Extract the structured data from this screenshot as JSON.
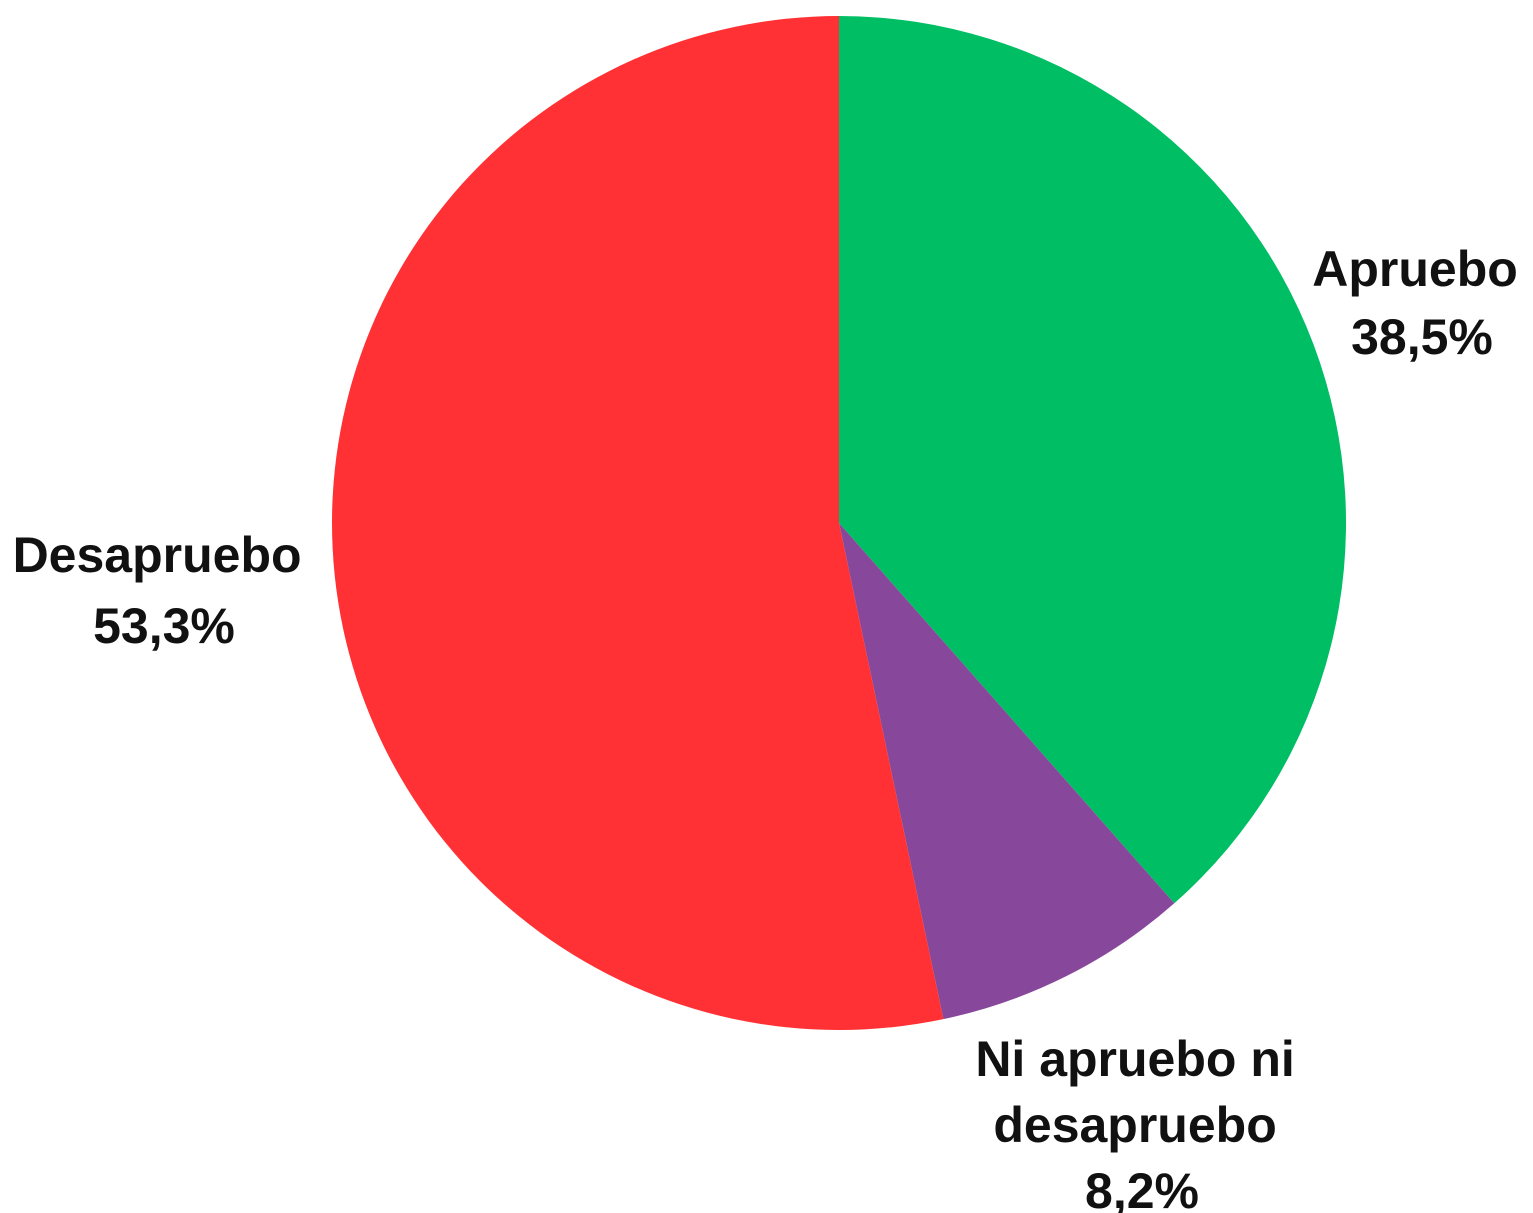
{
  "chart_data": {
    "type": "pie",
    "start_angle_deg": 0,
    "direction": "clockwise",
    "slices": [
      {
        "label": "Apruebo",
        "value": 38.5,
        "value_text": "38,5%",
        "color": "#00be64"
      },
      {
        "label": "Ni apruebo ni desapruebo",
        "label_lines": [
          "Ni apruebo ni",
          "desapruebo"
        ],
        "value": 8.2,
        "value_text": "8,2%",
        "color": "#87489b"
      },
      {
        "label": "Desapruebo",
        "value": 53.3,
        "value_text": "53,3%",
        "color": "#ff3134"
      }
    ]
  }
}
